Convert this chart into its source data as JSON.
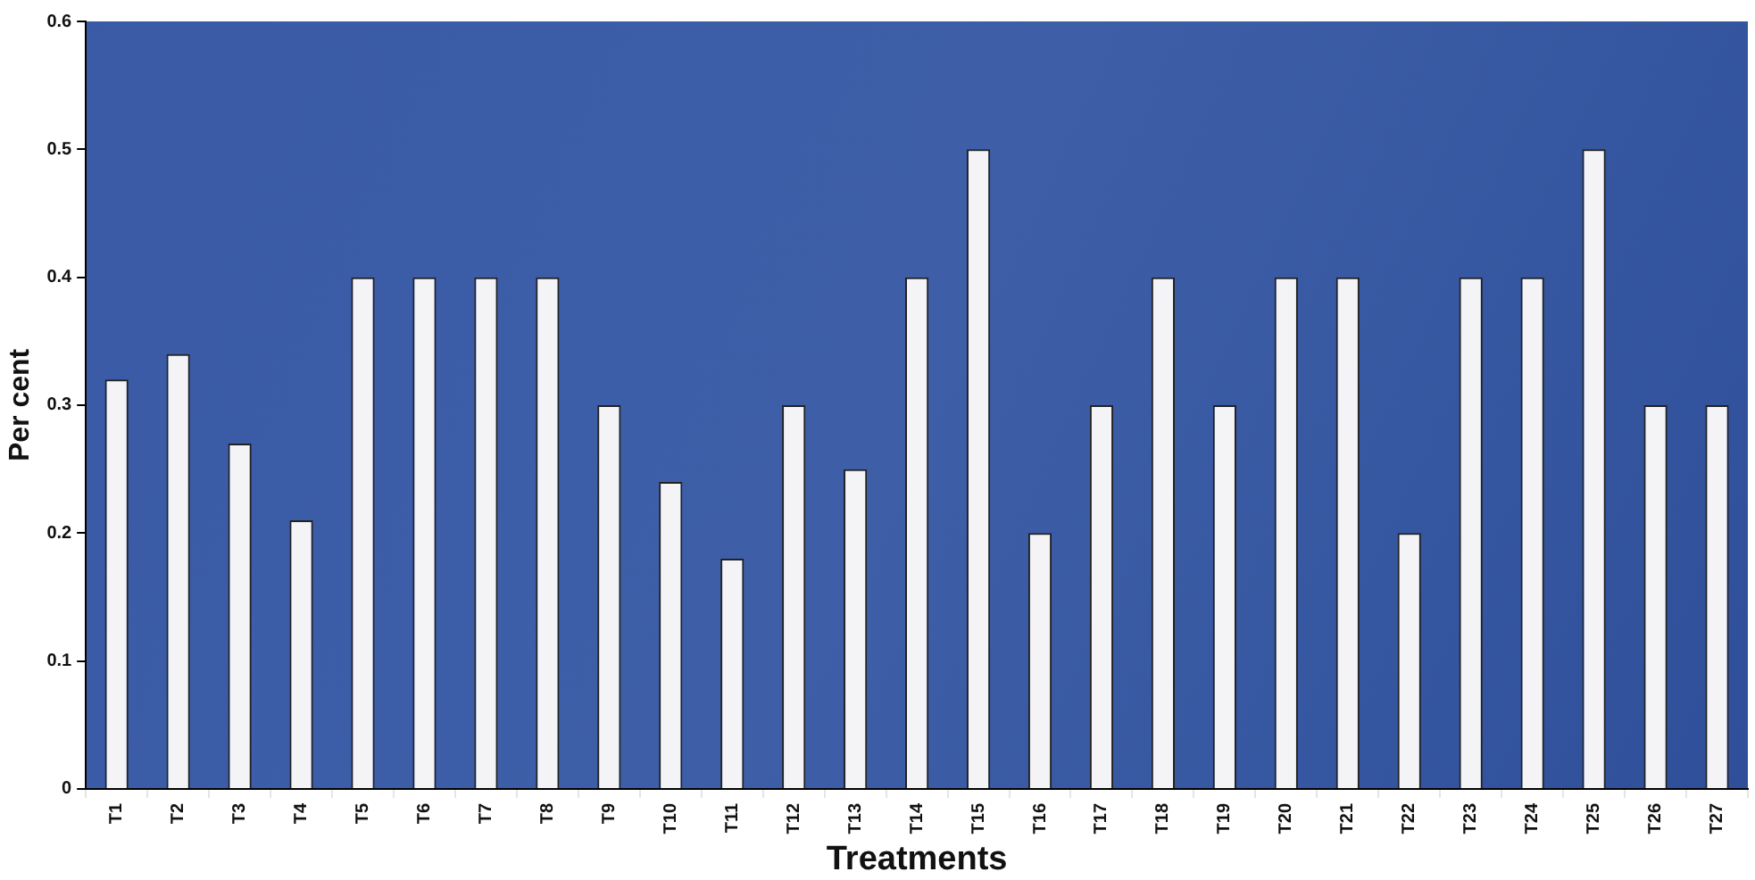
{
  "chart_data": {
    "type": "bar",
    "xlabel": "Treatments",
    "ylabel": "Per cent",
    "categories": [
      "T1",
      "T2",
      "T3",
      "T4",
      "T5",
      "T6",
      "T7",
      "T8",
      "T9",
      "T10",
      "T11",
      "T12",
      "T13",
      "T14",
      "T15",
      "T16",
      "T17",
      "T18",
      "T19",
      "T20",
      "T21",
      "T22",
      "T23",
      "T24",
      "T25",
      "T26",
      "T27"
    ],
    "values": [
      0.32,
      0.34,
      0.27,
      0.21,
      0.4,
      0.4,
      0.4,
      0.4,
      0.3,
      0.24,
      0.18,
      0.3,
      0.25,
      0.4,
      0.5,
      0.2,
      0.3,
      0.4,
      0.3,
      0.4,
      0.4,
      0.2,
      0.4,
      0.4,
      0.5,
      0.3,
      0.3
    ],
    "color": "#f4f4f6",
    "ylim": [
      0,
      0.6
    ],
    "yticks": [
      0,
      0.1,
      0.2,
      0.3,
      0.4,
      0.5,
      0.6
    ],
    "grid": false,
    "legend": false
  }
}
